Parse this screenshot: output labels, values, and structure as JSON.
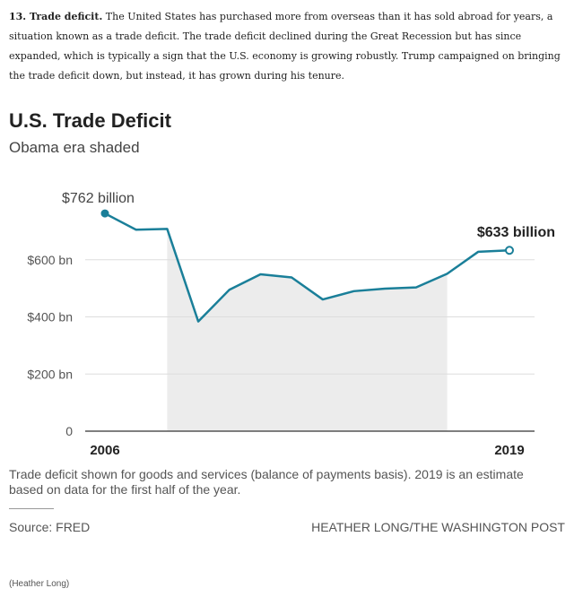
{
  "intro": {
    "lead": "13. Trade deficit.",
    "text": "The United States has purchased more from overseas than it has sold abroad for years, a situation known as a trade deficit. The trade deficit declined during the Great Recession but has since expanded, which is typically a sign that the U.S. economy is growing robustly. Trump campaigned on bringing the trade deficit down, but instead, it has grown during his tenure."
  },
  "chart_data": {
    "type": "line",
    "title": "U.S. Trade Deficit",
    "subtitle": "Obama era shaded",
    "x": [
      2006,
      2007,
      2008,
      2009,
      2010,
      2011,
      2012,
      2013,
      2014,
      2015,
      2016,
      2017,
      2018,
      2019
    ],
    "values": [
      762,
      705,
      708,
      384,
      495,
      549,
      538,
      461,
      490,
      499,
      503,
      551,
      628,
      633
    ],
    "ylim": [
      0,
      800
    ],
    "yticks": [
      0,
      200,
      400,
      600
    ],
    "ytick_labels": [
      "0",
      "$200 bn",
      "$400 bn",
      "$600 bn"
    ],
    "xtick_labels": [
      "2006",
      "2019"
    ],
    "shaded_range": [
      2008,
      2017
    ],
    "annotations": {
      "start": "$762 billion",
      "end": "$633 billion"
    },
    "grid": true,
    "colors": {
      "line": "#1a7f99",
      "shade": "#ececec",
      "grid": "#dddddd"
    }
  },
  "footer": {
    "note": "Trade deficit shown for goods and services (balance of payments basis). 2019 is an estimate based on data for the first half of the year.",
    "source": "Source: FRED",
    "credit": "HEATHER LONG/THE WASHINGTON POST",
    "photo_credit": "(Heather Long)"
  }
}
